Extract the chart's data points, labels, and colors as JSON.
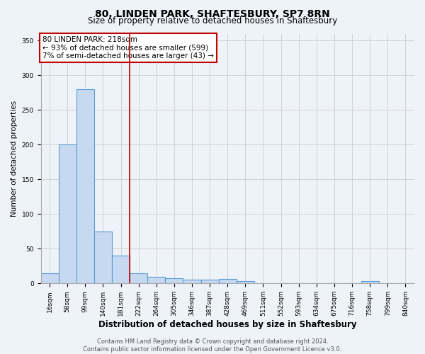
{
  "title": "80, LINDEN PARK, SHAFTESBURY, SP7 8RN",
  "subtitle": "Size of property relative to detached houses in Shaftesbury",
  "xlabel": "Distribution of detached houses by size in Shaftesbury",
  "ylabel": "Number of detached properties",
  "bar_labels": [
    "16sqm",
    "58sqm",
    "99sqm",
    "140sqm",
    "181sqm",
    "222sqm",
    "264sqm",
    "305sqm",
    "346sqm",
    "387sqm",
    "428sqm",
    "469sqm",
    "511sqm",
    "552sqm",
    "593sqm",
    "634sqm",
    "675sqm",
    "716sqm",
    "758sqm",
    "799sqm",
    "840sqm"
  ],
  "bar_values": [
    15,
    200,
    280,
    75,
    40,
    15,
    10,
    7,
    5,
    5,
    6,
    3,
    0,
    0,
    0,
    0,
    0,
    0,
    3,
    0,
    0
  ],
  "bar_color": "#c6d9f0",
  "bar_edge_color": "#5b9bd5",
  "bar_linewidth": 0.8,
  "vline_x_index": 5,
  "vline_color": "#c00000",
  "vline_linewidth": 1.2,
  "annotation_text": "80 LINDEN PARK: 218sqm\n← 93% of detached houses are smaller (599)\n7% of semi-detached houses are larger (43) →",
  "annotation_box_facecolor": "#ffffff",
  "annotation_box_edgecolor": "#c00000",
  "ylim": [
    0,
    360
  ],
  "yticks": [
    0,
    50,
    100,
    150,
    200,
    250,
    300,
    350
  ],
  "grid_color": "#cccccc",
  "background_color": "#eef2f9",
  "footer_text": "Contains HM Land Registry data © Crown copyright and database right 2024.\nContains public sector information licensed under the Open Government Licence v3.0.",
  "title_fontsize": 10,
  "subtitle_fontsize": 8.5,
  "xlabel_fontsize": 8.5,
  "ylabel_fontsize": 7.5,
  "annotation_fontsize": 7.5,
  "tick_fontsize": 6.5,
  "footer_fontsize": 6
}
